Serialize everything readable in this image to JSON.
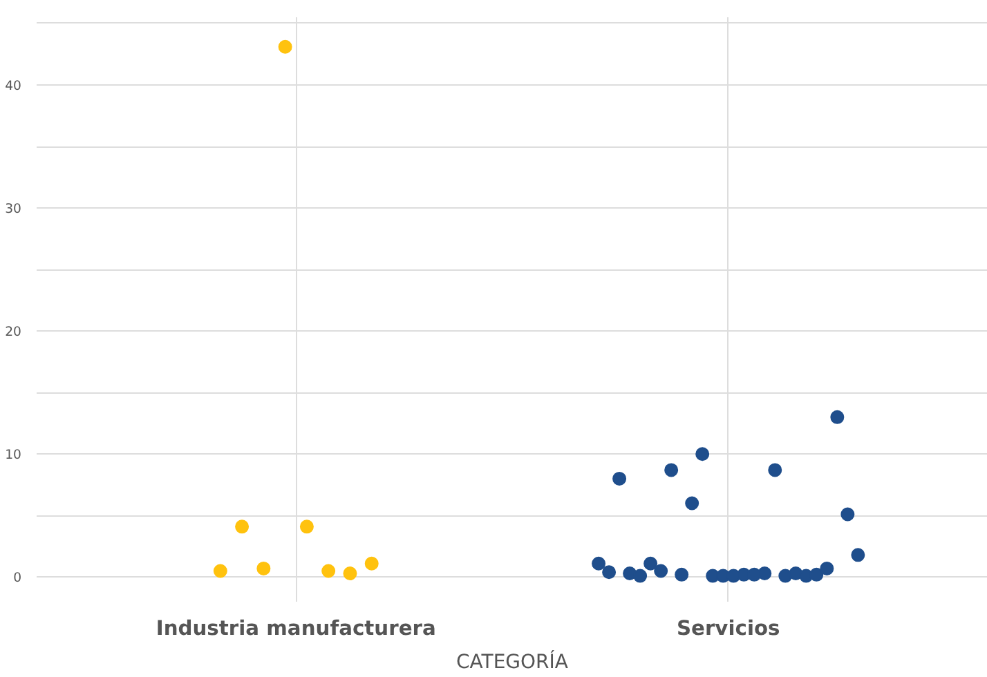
{
  "chart_data": {
    "type": "scatter",
    "xlabel": "CATEGORÍA",
    "categories": [
      "Industria manufacturera",
      "Servicios"
    ],
    "ylim": [
      -2,
      45.5
    ],
    "yticks": [
      0,
      {
        "value": 5,
        "label": null
      },
      10,
      {
        "value": 15,
        "label": null
      },
      20,
      {
        "value": 25,
        "label": null
      },
      30,
      {
        "value": 35,
        "label": null
      },
      40,
      {
        "value": 45,
        "label": null
      }
    ],
    "grid": true,
    "marker": "circle",
    "series": [
      {
        "color": "#ffc20e",
        "x": [
          "Industria manufacturera",
          "Industria manufacturera",
          "Industria manufacturera",
          "Industria manufacturera",
          "Industria manufacturera",
          "Industria manufacturera",
          "Industria manufacturera",
          "Industria manufacturera"
        ],
        "values": [
          0.5,
          4.1,
          0.7,
          43.1,
          4.1,
          0.5,
          0.3,
          1.1
        ]
      },
      {
        "color": "#1f4e8c",
        "x": [
          "Servicios",
          "Servicios",
          "Servicios",
          "Servicios",
          "Servicios",
          "Servicios",
          "Servicios",
          "Servicios",
          "Servicios",
          "Servicios",
          "Servicios",
          "Servicios",
          "Servicios",
          "Servicios",
          "Servicios",
          "Servicios",
          "Servicios",
          "Servicios",
          "Servicios",
          "Servicios",
          "Servicios",
          "Servicios",
          "Servicios",
          "Servicios",
          "Servicios",
          "Servicios"
        ],
        "values": [
          1.1,
          0.4,
          8.0,
          0.3,
          0.1,
          1.1,
          0.5,
          8.7,
          0.2,
          6.0,
          10.0,
          0.1,
          0.1,
          0.1,
          0.2,
          0.2,
          0.3,
          8.7,
          0.1,
          0.3,
          0.1,
          0.2,
          0.7,
          13.0,
          5.1,
          1.8
        ]
      }
    ]
  }
}
